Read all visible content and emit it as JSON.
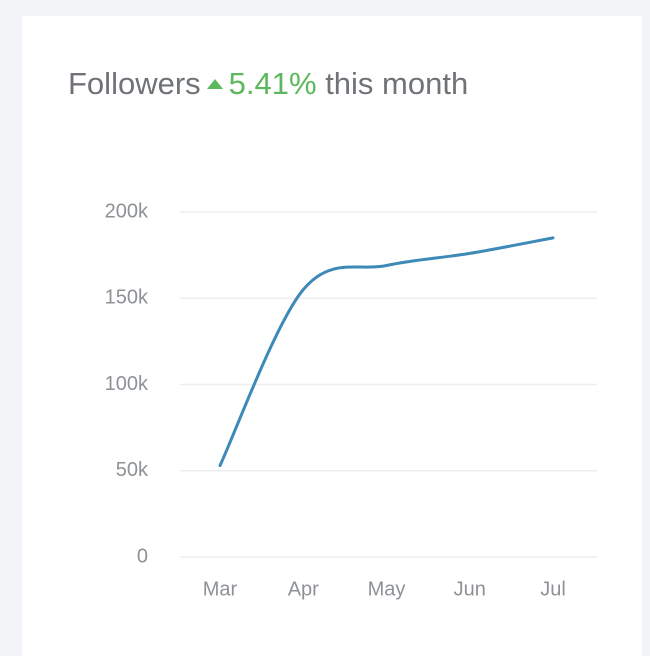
{
  "chart_data": {
    "type": "line",
    "title": "Followers",
    "change": "5.41%",
    "change_period": "this month",
    "categories": [
      "Mar",
      "Apr",
      "May",
      "Jun",
      "Jul"
    ],
    "series": [
      {
        "name": "Followers",
        "color": "#3d89b8",
        "values": [
          53000,
          155000,
          169000,
          176000,
          185000
        ]
      }
    ],
    "ylim": [
      0,
      200000
    ],
    "yticks": [
      0,
      {
        "value": 50000,
        "label": "50k"
      },
      {
        "value": 100000,
        "label": "100k"
      },
      {
        "value": 150000,
        "label": "150k"
      },
      {
        "value": 200000,
        "label": "200k"
      }
    ],
    "grid": true,
    "change_color": "#5cb85c"
  }
}
